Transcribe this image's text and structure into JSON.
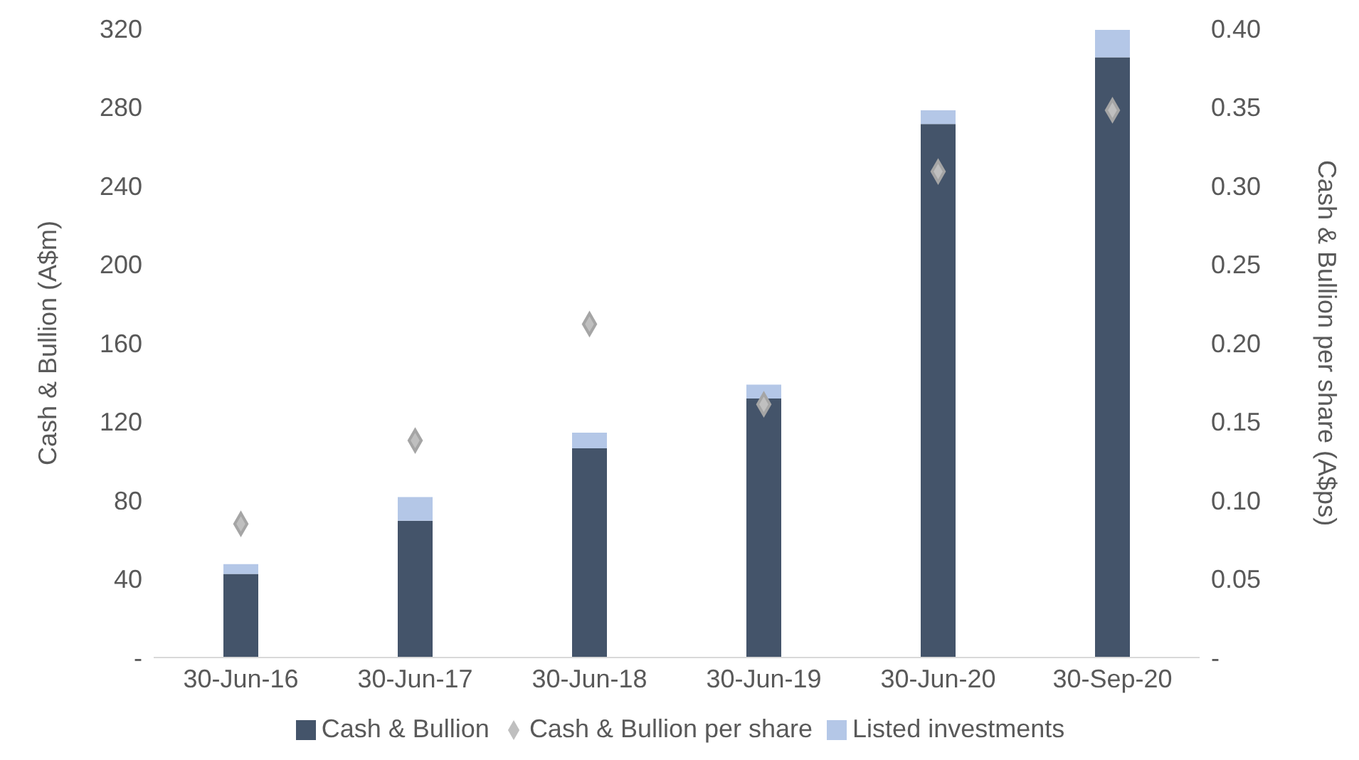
{
  "chart_data": {
    "type": "bar",
    "ylabel": "Cash & Bullion (A$m)",
    "y2label": "Cash & Bullion per share (A$ps)",
    "categories": [
      "30-Jun-16",
      "30-Jun-17",
      "30-Jun-18",
      "30-Jun-19",
      "30-Jun-20",
      "30-Sep-20"
    ],
    "stacked": true,
    "series": [
      {
        "name": "Cash & Bullion",
        "color": "#44546a",
        "values": [
          42.5,
          69.6,
          106.4,
          131.8,
          271.4,
          305.3
        ]
      },
      {
        "name": "Listed investments",
        "color": "#b4c7e7",
        "values": [
          5,
          12,
          8,
          7,
          7,
          14
        ]
      },
      {
        "name": "Cash & Bullion per share",
        "type": "scatter",
        "axis": "y2",
        "color": "#bfbfbf",
        "values": [
          0.085,
          0.138,
          0.212,
          0.161,
          0.309,
          0.348
        ]
      }
    ],
    "marker": "diamond",
    "ylim": [
      0,
      320
    ],
    "yticks": [
      {
        "value": 0,
        "label": "-"
      },
      40,
      80,
      120,
      160,
      200,
      240,
      280,
      320
    ],
    "y2lim": [
      0,
      0.4
    ],
    "y2ticks": [
      {
        "value": 0,
        "label": "-"
      },
      {
        "value": 0.05,
        "label": "0.05"
      },
      {
        "value": 0.1,
        "label": "0.10"
      },
      {
        "value": 0.15,
        "label": "0.15"
      },
      {
        "value": 0.2,
        "label": "0.20"
      },
      {
        "value": 0.25,
        "label": "0.25"
      },
      {
        "value": 0.3,
        "label": "0.30"
      },
      {
        "value": 0.35,
        "label": "0.35"
      },
      {
        "value": 0.4,
        "label": "0.40"
      }
    ],
    "grid": false,
    "legend": "bottom"
  }
}
